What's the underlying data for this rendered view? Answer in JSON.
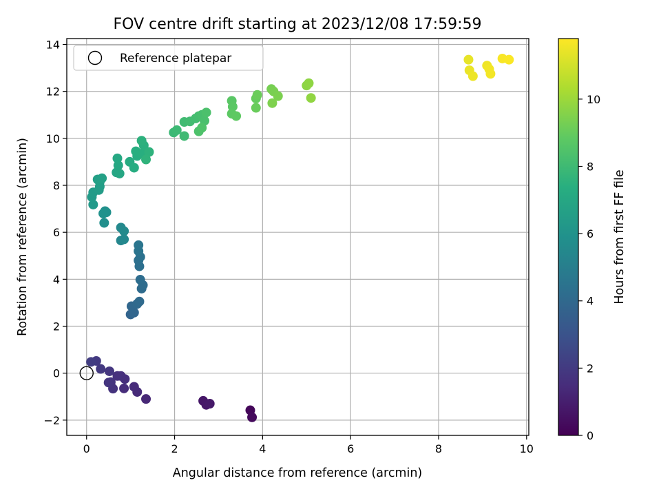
{
  "chart_data": {
    "type": "scatter",
    "title": "FOV centre drift starting at 2023/12/08 17:59:59",
    "xlabel": "Angular distance from reference (arcmin)",
    "ylabel": "Rotation from reference (arcmin)",
    "xlim": [
      -0.45,
      10.05
    ],
    "ylim": [
      -2.65,
      14.25
    ],
    "xticks": [
      0,
      2,
      4,
      6,
      8,
      10
    ],
    "xtick_labels": [
      "0",
      "2",
      "4",
      "6",
      "8",
      "10"
    ],
    "yticks": [
      -2,
      0,
      2,
      4,
      6,
      8,
      10,
      12,
      14
    ],
    "ytick_labels": [
      "−2",
      "0",
      "2",
      "4",
      "6",
      "8",
      "10",
      "12",
      "14"
    ],
    "grid": true,
    "legend": {
      "placement": "upper-left",
      "label": "Reference platepar",
      "marker": "open-circle"
    },
    "reference_point": {
      "x": 0,
      "y": 0
    },
    "colorbar": {
      "label": "Hours from first FF file",
      "colormap": "viridis",
      "range": [
        0,
        11.8
      ],
      "ticks": [
        0,
        2,
        4,
        6,
        8,
        10
      ],
      "tick_labels": [
        "0",
        "2",
        "4",
        "6",
        "8",
        "10"
      ]
    },
    "points": [
      {
        "x": 3.72,
        "y": -1.58,
        "c": 0.2
      },
      {
        "x": 3.76,
        "y": -1.88,
        "c": 0.3
      },
      {
        "x": 2.65,
        "y": -1.18,
        "c": 0.7
      },
      {
        "x": 2.72,
        "y": -1.35,
        "c": 0.75
      },
      {
        "x": 2.8,
        "y": -1.3,
        "c": 0.8
      },
      {
        "x": 1.35,
        "y": -1.1,
        "c": 1.3
      },
      {
        "x": 1.15,
        "y": -0.8,
        "c": 1.4
      },
      {
        "x": 1.08,
        "y": -0.58,
        "c": 1.45
      },
      {
        "x": 0.85,
        "y": -0.65,
        "c": 1.5
      },
      {
        "x": 0.87,
        "y": -0.25,
        "c": 1.55
      },
      {
        "x": 0.78,
        "y": -0.12,
        "c": 1.6
      },
      {
        "x": 0.7,
        "y": -0.12,
        "c": 1.65
      },
      {
        "x": 0.6,
        "y": -0.66,
        "c": 1.7
      },
      {
        "x": 0.55,
        "y": -0.38,
        "c": 1.75
      },
      {
        "x": 0.5,
        "y": -0.4,
        "c": 1.8
      },
      {
        "x": 0.52,
        "y": 0.08,
        "c": 1.85
      },
      {
        "x": 0.32,
        "y": 0.18,
        "c": 1.95
      },
      {
        "x": 0.22,
        "y": 0.52,
        "c": 2.0
      },
      {
        "x": 0.1,
        "y": 0.48,
        "c": 2.1
      },
      {
        "x": 1.0,
        "y": 2.5,
        "c": 3.8
      },
      {
        "x": 1.08,
        "y": 2.58,
        "c": 3.85
      },
      {
        "x": 1.02,
        "y": 2.85,
        "c": 3.9
      },
      {
        "x": 1.15,
        "y": 2.95,
        "c": 4.0
      },
      {
        "x": 1.2,
        "y": 3.05,
        "c": 4.05
      },
      {
        "x": 1.25,
        "y": 3.6,
        "c": 4.1
      },
      {
        "x": 1.28,
        "y": 3.75,
        "c": 4.15
      },
      {
        "x": 1.22,
        "y": 3.98,
        "c": 4.2
      },
      {
        "x": 1.2,
        "y": 4.55,
        "c": 4.3
      },
      {
        "x": 1.18,
        "y": 4.8,
        "c": 4.35
      },
      {
        "x": 1.22,
        "y": 4.95,
        "c": 4.4
      },
      {
        "x": 1.18,
        "y": 5.2,
        "c": 4.5
      },
      {
        "x": 1.18,
        "y": 5.45,
        "c": 4.55
      },
      {
        "x": 0.78,
        "y": 5.65,
        "c": 5.4
      },
      {
        "x": 0.85,
        "y": 5.7,
        "c": 5.45
      },
      {
        "x": 0.78,
        "y": 6.2,
        "c": 5.5
      },
      {
        "x": 0.85,
        "y": 6.05,
        "c": 5.55
      },
      {
        "x": 0.4,
        "y": 6.4,
        "c": 5.8
      },
      {
        "x": 0.42,
        "y": 6.9,
        "c": 5.85
      },
      {
        "x": 0.45,
        "y": 6.85,
        "c": 5.9
      },
      {
        "x": 0.38,
        "y": 6.8,
        "c": 5.95
      },
      {
        "x": 0.15,
        "y": 7.18,
        "c": 6.3
      },
      {
        "x": 0.12,
        "y": 7.5,
        "c": 6.35
      },
      {
        "x": 0.15,
        "y": 7.7,
        "c": 6.4
      },
      {
        "x": 0.28,
        "y": 7.8,
        "c": 6.45
      },
      {
        "x": 0.3,
        "y": 7.95,
        "c": 6.5
      },
      {
        "x": 0.3,
        "y": 8.15,
        "c": 6.55
      },
      {
        "x": 0.25,
        "y": 8.25,
        "c": 6.6
      },
      {
        "x": 0.35,
        "y": 8.3,
        "c": 6.65
      },
      {
        "x": 0.68,
        "y": 8.55,
        "c": 6.9
      },
      {
        "x": 0.75,
        "y": 8.5,
        "c": 6.95
      },
      {
        "x": 0.72,
        "y": 8.85,
        "c": 7.0
      },
      {
        "x": 0.7,
        "y": 9.15,
        "c": 7.05
      },
      {
        "x": 0.98,
        "y": 9.0,
        "c": 7.2
      },
      {
        "x": 1.08,
        "y": 8.75,
        "c": 7.25
      },
      {
        "x": 1.15,
        "y": 9.25,
        "c": 7.3
      },
      {
        "x": 1.12,
        "y": 9.45,
        "c": 7.35
      },
      {
        "x": 1.25,
        "y": 9.35,
        "c": 7.4
      },
      {
        "x": 1.3,
        "y": 9.7,
        "c": 7.45
      },
      {
        "x": 1.25,
        "y": 9.9,
        "c": 7.5
      },
      {
        "x": 1.42,
        "y": 9.42,
        "c": 7.55
      },
      {
        "x": 1.35,
        "y": 9.1,
        "c": 7.6
      },
      {
        "x": 1.98,
        "y": 10.25,
        "c": 7.9
      },
      {
        "x": 2.05,
        "y": 10.35,
        "c": 7.95
      },
      {
        "x": 2.22,
        "y": 10.1,
        "c": 8.0
      },
      {
        "x": 2.22,
        "y": 10.7,
        "c": 8.05
      },
      {
        "x": 2.35,
        "y": 10.72,
        "c": 8.1
      },
      {
        "x": 2.48,
        "y": 10.85,
        "c": 8.15
      },
      {
        "x": 2.55,
        "y": 10.95,
        "c": 8.2
      },
      {
        "x": 2.62,
        "y": 11.0,
        "c": 8.25
      },
      {
        "x": 2.68,
        "y": 10.75,
        "c": 8.3
      },
      {
        "x": 2.72,
        "y": 11.1,
        "c": 8.35
      },
      {
        "x": 2.55,
        "y": 10.3,
        "c": 8.4
      },
      {
        "x": 2.62,
        "y": 10.45,
        "c": 8.45
      },
      {
        "x": 3.3,
        "y": 11.6,
        "c": 8.7
      },
      {
        "x": 3.32,
        "y": 11.35,
        "c": 8.75
      },
      {
        "x": 3.3,
        "y": 11.05,
        "c": 8.8
      },
      {
        "x": 3.4,
        "y": 10.95,
        "c": 8.85
      },
      {
        "x": 3.85,
        "y": 11.7,
        "c": 9.0
      },
      {
        "x": 3.85,
        "y": 11.3,
        "c": 9.05
      },
      {
        "x": 3.88,
        "y": 11.85,
        "c": 9.1
      },
      {
        "x": 4.2,
        "y": 12.1,
        "c": 9.3
      },
      {
        "x": 4.25,
        "y": 12.0,
        "c": 9.35
      },
      {
        "x": 4.35,
        "y": 11.8,
        "c": 9.4
      },
      {
        "x": 4.22,
        "y": 11.5,
        "c": 9.45
      },
      {
        "x": 5.0,
        "y": 12.25,
        "c": 9.7
      },
      {
        "x": 5.05,
        "y": 12.35,
        "c": 9.75
      },
      {
        "x": 5.1,
        "y": 11.72,
        "c": 9.8
      },
      {
        "x": 8.68,
        "y": 13.35,
        "c": 11.4
      },
      {
        "x": 8.7,
        "y": 12.9,
        "c": 11.45
      },
      {
        "x": 8.78,
        "y": 12.65,
        "c": 11.5
      },
      {
        "x": 9.1,
        "y": 13.1,
        "c": 11.55
      },
      {
        "x": 9.15,
        "y": 12.95,
        "c": 11.6
      },
      {
        "x": 9.18,
        "y": 12.75,
        "c": 11.62
      },
      {
        "x": 9.45,
        "y": 13.4,
        "c": 11.7
      },
      {
        "x": 9.6,
        "y": 13.35,
        "c": 11.75
      }
    ]
  }
}
